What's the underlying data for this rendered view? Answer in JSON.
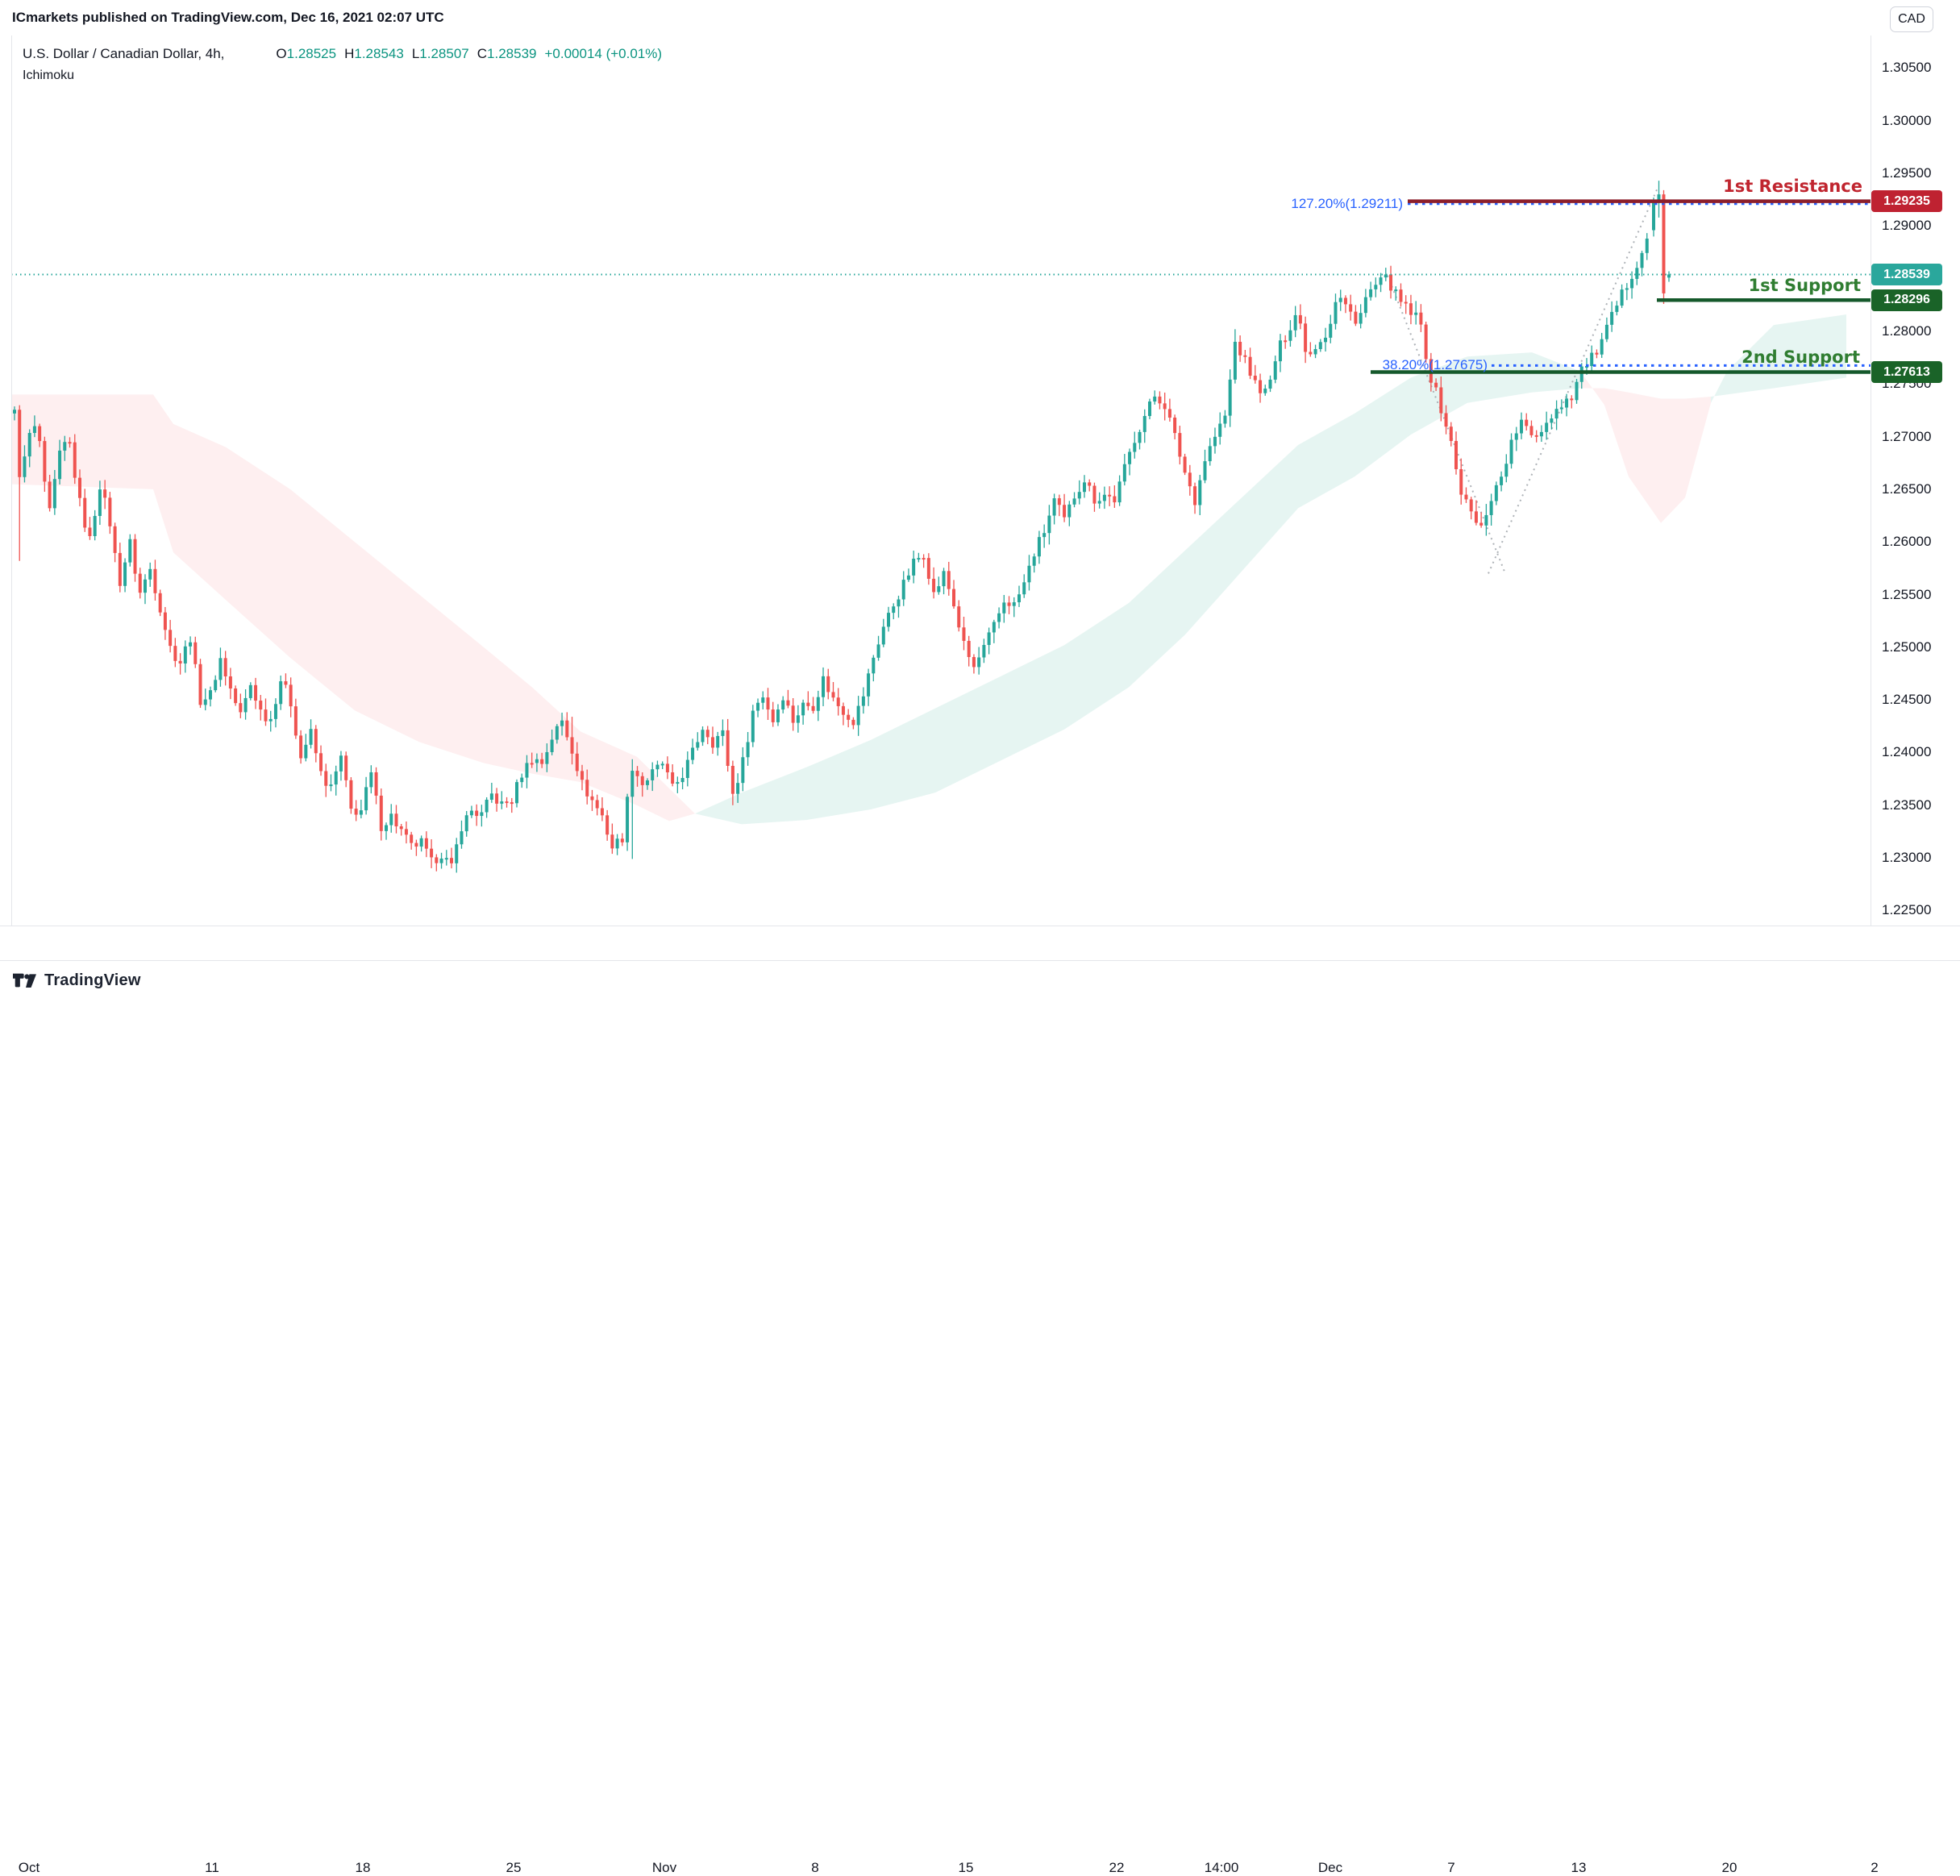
{
  "banner": {
    "text": "ICmarkets published on TradingView.com, Dec 16, 2021 02:07 UTC"
  },
  "header": {
    "symbol": "U.S. Dollar / Canadian Dollar, 4h,",
    "open": {
      "k": "O",
      "v": "1.28525"
    },
    "high": {
      "k": "H",
      "v": "1.28543"
    },
    "low": {
      "k": "L",
      "v": "1.28507"
    },
    "close": {
      "k": "C",
      "v": "1.28539"
    },
    "change": "+0.00014 (+0.01%)",
    "indicator": "Ichimoku"
  },
  "watermark": {
    "brand": "TradingView"
  },
  "chart_data": {
    "type": "candlestick",
    "title": "U.S. Dollar / Canadian Dollar, 4h, Ichimoku",
    "currency": "CAD",
    "ylim": [
      1.22358,
      1.30809
    ],
    "plot": {
      "x0": 14,
      "x1": 2320,
      "y0": 44,
      "y1": 1148
    },
    "grid": "off",
    "price_labels": [
      "1.30500",
      "1.30000",
      "1.29500",
      "1.29000",
      "1.28500",
      "1.28000",
      "1.27500",
      "1.27000",
      "1.26500",
      "1.26000",
      "1.25500",
      "1.25000",
      "1.24500",
      "1.24000",
      "1.23500",
      "1.23000",
      "1.22500"
    ],
    "time_labels": [
      {
        "text": "Oct",
        "x": 36
      },
      {
        "text": "11",
        "x": 263
      },
      {
        "text": "18",
        "x": 450
      },
      {
        "text": "25",
        "x": 637
      },
      {
        "text": "Nov",
        "x": 824
      },
      {
        "text": "8",
        "x": 1011
      },
      {
        "text": "15",
        "x": 1198
      },
      {
        "text": "22",
        "x": 1385
      },
      {
        "text": "14:00",
        "x": 1515
      },
      {
        "text": "Dec",
        "x": 1650
      },
      {
        "text": "7",
        "x": 1800
      },
      {
        "text": "13",
        "x": 1958
      },
      {
        "text": "20",
        "x": 2145
      },
      {
        "text": "2",
        "x": 2325
      }
    ],
    "candles": {
      "up_color": "#26a69a",
      "down_color": "#ef5350",
      "start_x": 18,
      "spacing": 6.23,
      "body_width": 4.0,
      "path": [
        [
          8,
          1.2715
        ],
        [
          16,
          1.274
        ],
        [
          26,
          1.265
        ],
        [
          34,
          1.27
        ],
        [
          47,
          1.271
        ],
        [
          60,
          1.262
        ],
        [
          73,
          1.268
        ],
        [
          85,
          1.27
        ],
        [
          98,
          1.264
        ],
        [
          111,
          1.26
        ],
        [
          124,
          1.2655
        ],
        [
          136,
          1.262
        ],
        [
          148,
          1.256
        ],
        [
          161,
          1.26
        ],
        [
          173,
          1.255
        ],
        [
          186,
          1.2575
        ],
        [
          198,
          1.254
        ],
        [
          211,
          1.25
        ],
        [
          223,
          1.2485
        ],
        [
          236,
          1.251
        ],
        [
          248,
          1.245
        ],
        [
          261,
          1.2455
        ],
        [
          273,
          1.249
        ],
        [
          286,
          1.246
        ],
        [
          298,
          1.2435
        ],
        [
          311,
          1.2465
        ],
        [
          323,
          1.244
        ],
        [
          335,
          1.243
        ],
        [
          348,
          1.247
        ],
        [
          360,
          1.245
        ],
        [
          373,
          1.2395
        ],
        [
          385,
          1.242
        ],
        [
          398,
          1.238
        ],
        [
          410,
          1.2365
        ],
        [
          423,
          1.2395
        ],
        [
          435,
          1.2345
        ],
        [
          448,
          1.2345
        ],
        [
          460,
          1.238
        ],
        [
          473,
          1.233
        ],
        [
          485,
          1.234
        ],
        [
          498,
          1.2325
        ],
        [
          510,
          1.231
        ],
        [
          522,
          1.2315
        ],
        [
          535,
          1.2295
        ],
        [
          547,
          1.2305
        ],
        [
          560,
          1.229
        ],
        [
          572,
          1.233
        ],
        [
          585,
          1.2345
        ],
        [
          597,
          1.234
        ],
        [
          610,
          1.236
        ],
        [
          622,
          1.235
        ],
        [
          635,
          1.2355
        ],
        [
          647,
          1.238
        ],
        [
          660,
          1.2395
        ],
        [
          672,
          1.239
        ],
        [
          685,
          1.2415
        ],
        [
          697,
          1.243
        ],
        [
          709,
          1.2405
        ],
        [
          722,
          1.237
        ],
        [
          734,
          1.2355
        ],
        [
          747,
          1.234
        ],
        [
          759,
          1.231
        ],
        [
          772,
          1.232
        ],
        [
          784,
          1.2388
        ],
        [
          797,
          1.237
        ],
        [
          809,
          1.238
        ],
        [
          822,
          1.239
        ],
        [
          834,
          1.2365
        ],
        [
          847,
          1.238
        ],
        [
          859,
          1.24
        ],
        [
          872,
          1.2425
        ],
        [
          884,
          1.241
        ],
        [
          896,
          1.242
        ],
        [
          909,
          1.236
        ],
        [
          921,
          1.239
        ],
        [
          934,
          1.244
        ],
        [
          946,
          1.2455
        ],
        [
          959,
          1.243
        ],
        [
          971,
          1.2455
        ],
        [
          984,
          1.243
        ],
        [
          996,
          1.2445
        ],
        [
          1009,
          1.2445
        ],
        [
          1021,
          1.247
        ],
        [
          1034,
          1.245
        ],
        [
          1046,
          1.244
        ],
        [
          1059,
          1.243
        ],
        [
          1071,
          1.2455
        ],
        [
          1083,
          1.249
        ],
        [
          1096,
          1.252
        ],
        [
          1108,
          1.254
        ],
        [
          1121,
          1.256
        ],
        [
          1133,
          1.258
        ],
        [
          1146,
          1.259
        ],
        [
          1158,
          1.255
        ],
        [
          1171,
          1.257
        ],
        [
          1183,
          1.254
        ],
        [
          1196,
          1.25
        ],
        [
          1208,
          1.248
        ],
        [
          1221,
          1.25
        ],
        [
          1233,
          1.252
        ],
        [
          1246,
          1.2545
        ],
        [
          1258,
          1.254
        ],
        [
          1270,
          1.256
        ],
        [
          1283,
          1.259
        ],
        [
          1295,
          1.261
        ],
        [
          1308,
          1.264
        ],
        [
          1320,
          1.262
        ],
        [
          1333,
          1.2645
        ],
        [
          1345,
          1.266
        ],
        [
          1358,
          1.264
        ],
        [
          1370,
          1.2645
        ],
        [
          1383,
          1.264
        ],
        [
          1395,
          1.267
        ],
        [
          1408,
          1.27
        ],
        [
          1420,
          1.272
        ],
        [
          1433,
          1.274
        ],
        [
          1445,
          1.273
        ],
        [
          1457,
          1.27
        ],
        [
          1470,
          1.2665
        ],
        [
          1482,
          1.264
        ],
        [
          1495,
          1.268
        ],
        [
          1507,
          1.27
        ],
        [
          1520,
          1.272
        ],
        [
          1532,
          1.279
        ],
        [
          1545,
          1.277
        ],
        [
          1557,
          1.275
        ],
        [
          1572,
          1.274
        ],
        [
          1584,
          1.278
        ],
        [
          1597,
          1.28
        ],
        [
          1609,
          1.282
        ],
        [
          1622,
          1.2775
        ],
        [
          1634,
          1.279
        ],
        [
          1647,
          1.28
        ],
        [
          1659,
          1.2835
        ],
        [
          1672,
          1.282
        ],
        [
          1684,
          1.281
        ],
        [
          1696,
          1.2835
        ],
        [
          1709,
          1.2845
        ],
        [
          1721,
          1.285
        ],
        [
          1734,
          1.283
        ],
        [
          1746,
          1.282
        ],
        [
          1761,
          1.281
        ],
        [
          1773,
          1.276
        ],
        [
          1786,
          1.273
        ],
        [
          1798,
          1.27
        ],
        [
          1811,
          1.265
        ],
        [
          1823,
          1.263
        ],
        [
          1836,
          1.261
        ],
        [
          1848,
          1.264
        ],
        [
          1861,
          1.266
        ],
        [
          1873,
          1.269
        ],
        [
          1886,
          1.2715
        ],
        [
          1898,
          1.27
        ],
        [
          1910,
          1.2705
        ],
        [
          1923,
          1.272
        ],
        [
          1935,
          1.273
        ],
        [
          1950,
          1.274
        ],
        [
          1962,
          1.2765
        ],
        [
          1975,
          1.2775
        ],
        [
          1987,
          1.279
        ],
        [
          2000,
          1.2815
        ],
        [
          2012,
          1.2835
        ],
        [
          2024,
          1.2855
        ],
        [
          2036,
          1.2875
        ],
        [
          2046,
          1.2895
        ]
      ],
      "extra_wicks": [
        [
          24,
          -1,
          1.2582
        ],
        [
          709,
          1,
          1.2434
        ],
        [
          784,
          -1,
          1.2299
        ],
        [
          909,
          -1,
          1.235
        ],
        [
          1532,
          1,
          1.2802
        ]
      ],
      "last": [
        {
          "x": 2051,
          "o": 1.2896,
          "h": 1.2927,
          "l": 1.289,
          "c": 1.2922
        },
        {
          "x": 2057.5,
          "o": 1.2922,
          "h": 1.2943,
          "l": 1.2908,
          "c": 1.293
        },
        {
          "x": 2063.5,
          "o": 1.293,
          "h": 1.2934,
          "l": 1.2826,
          "c": 1.2836
        },
        {
          "x": 2070,
          "o": 1.2851,
          "h": 1.2857,
          "l": 1.2847,
          "c": 1.2854
        }
      ]
    },
    "cloud": {
      "bull_color": "rgba(8,153,129,0.10)",
      "bear_color": "rgba(242,54,69,0.08)",
      "points": [
        [
          8,
          1.2655,
          1.274
        ],
        [
          190,
          1.265,
          1.274
        ],
        [
          215,
          1.259,
          1.2712
        ],
        [
          280,
          1.2545,
          1.269
        ],
        [
          360,
          1.249,
          1.265
        ],
        [
          440,
          1.244,
          1.26
        ],
        [
          520,
          1.241,
          1.255
        ],
        [
          600,
          1.239,
          1.25
        ],
        [
          660,
          1.238,
          1.2462
        ],
        [
          720,
          1.2372,
          1.242
        ],
        [
          790,
          1.235,
          1.2396
        ],
        [
          830,
          1.2335,
          1.2366
        ],
        [
          862,
          1.2342,
          1.2342
        ],
        [
          920,
          1.2362,
          1.2332
        ],
        [
          1000,
          1.2386,
          1.2336
        ],
        [
          1080,
          1.2412,
          1.2346
        ],
        [
          1160,
          1.2442,
          1.2362
        ],
        [
          1240,
          1.2472,
          1.2392
        ],
        [
          1320,
          1.2502,
          1.2422
        ],
        [
          1400,
          1.2542,
          1.2462
        ],
        [
          1470,
          1.2592,
          1.2512
        ],
        [
          1540,
          1.2642,
          1.2572
        ],
        [
          1610,
          1.2692,
          1.2632
        ],
        [
          1680,
          1.2722,
          1.2662
        ],
        [
          1750,
          1.2756,
          1.2702
        ],
        [
          1820,
          1.2776,
          1.2732
        ],
        [
          1900,
          1.278,
          1.2742
        ],
        [
          1960,
          1.2762,
          1.2746
        ],
        [
          1990,
          1.273,
          1.2746
        ],
        [
          2020,
          1.2662,
          1.2742
        ],
        [
          2060,
          1.2618,
          1.2736
        ],
        [
          2090,
          1.2642,
          1.2736
        ],
        [
          2122,
          1.2732,
          1.2738
        ],
        [
          2142,
          1.2762,
          1.274
        ],
        [
          2200,
          1.2806,
          1.2746
        ],
        [
          2290,
          1.2816,
          1.2756
        ]
      ]
    },
    "levels": [
      {
        "id": "resistance1",
        "label": "1st Resistance",
        "price": 1.29235,
        "badge": "1.29235",
        "x_start": 1746,
        "line_color": "#8c1f2b",
        "text_color": "#c0252f",
        "badge_color": "#bf2231",
        "label_right_x": 2310,
        "label_dy": -19
      },
      {
        "id": "support1",
        "label": "1st Support",
        "price": 1.28296,
        "badge": "1.28296",
        "x_start": 2055,
        "line_color": "#15592b",
        "text_color": "#2f7d31",
        "badge_color": "#1a6328",
        "label_right_x": 2308,
        "label_dy": -18
      },
      {
        "id": "support2",
        "label": "2nd Support",
        "price": 1.27613,
        "badge": "1.27613",
        "x_start": 1700,
        "line_color": "#15592b",
        "text_color": "#2f7d31",
        "badge_color": "#1a6328",
        "label_right_x": 2307,
        "label_dy": -19
      }
    ],
    "fibs": [
      {
        "label": "127.20%(1.29211)",
        "price": 1.29211,
        "x_start": 1746,
        "label_right_x": 1740,
        "color": "#2962ff"
      },
      {
        "label": "38.20%(1.27675)",
        "price": 1.27675,
        "x_start": 1850,
        "label_right_x": 1845,
        "color": "#2962ff"
      }
    ],
    "current_price": {
      "price": 1.28539,
      "badge": "1.28539",
      "color": "#26a69a",
      "badge_color": "#2aa79c"
    },
    "zigzag": {
      "color": "#9aa0a6",
      "segments": [
        [
          1721,
          1.2853,
          1867,
          1.257
        ],
        [
          1846,
          1.257,
          2057,
          1.2938
        ]
      ]
    }
  }
}
